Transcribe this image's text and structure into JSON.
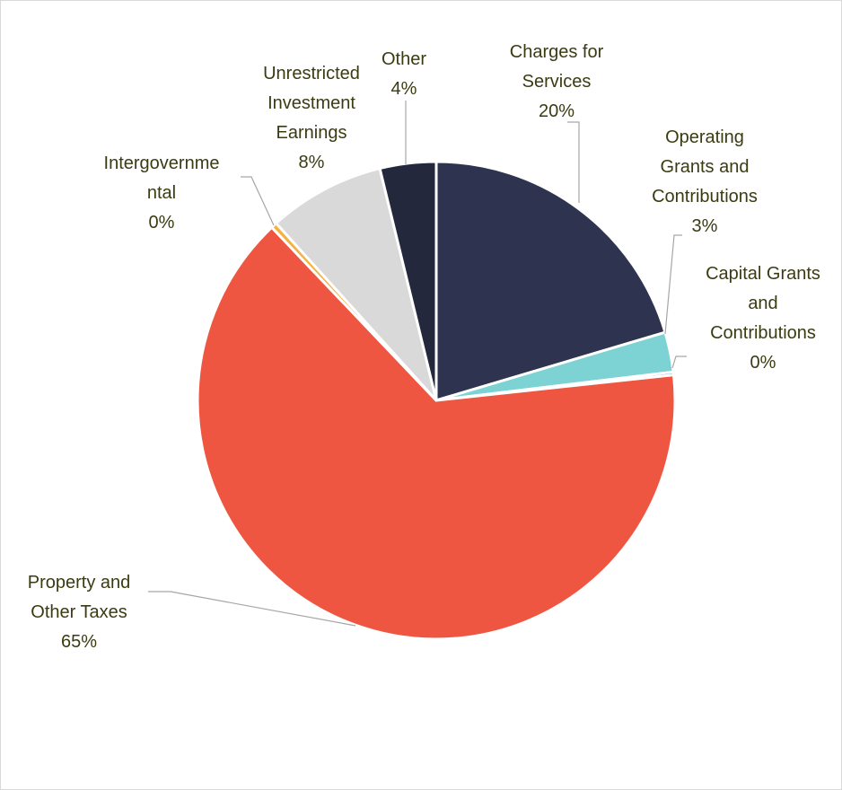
{
  "chart_data": {
    "type": "pie",
    "categories": [
      "Charges for\nServices",
      "Operating\nGrants and\nContributions",
      "Capital Grants\nand\nContributions",
      "Property and\nOther Taxes",
      "Intergovernme\nntal",
      "Unrestricted\nInvestment\nEarnings",
      "Other"
    ],
    "values": [
      20.4,
      2.7,
      0.2,
      64.6,
      0.4,
      7.9,
      3.8
    ],
    "value_labels": [
      "20%",
      "3%",
      "0%",
      "65%",
      "0%",
      "8%",
      "4%"
    ],
    "colors": [
      "#2e3350",
      "#7dd3d3",
      "#4a7ebb",
      "#ef5641",
      "#f5b041",
      "#d9d9d9",
      "#23283d"
    ]
  }
}
